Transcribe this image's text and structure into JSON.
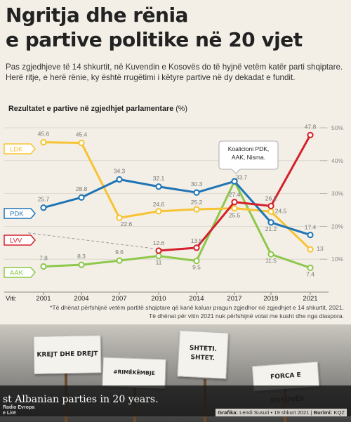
{
  "title_line1": "Ngritja dhe rënia",
  "title_line2": "e partive politike në 20 vjet",
  "subtitle": "Pas zgjedhjeve të 14 shkurtit, në Kuvendin e Kosovës do të hyjnë vetëm katër parti shqiptare. Herë ritje, e herë rënie, ky është rrugëtimi i këtyre partive në dy dekadat e fundit.",
  "chart_label_main": "Rezultatet e partive në zgjedhjet parlamentare",
  "chart_label_unit": "(%)",
  "footnote_line1": "*Të dhënat përfshijnë vetëm partitë shqiptare që kanë kaluar pragun zgjedhor në zgjedhjet e 14 shkurtit, 2021.",
  "footnote_line2": "Të dhënat për vitin 2021 nuk përfshijnë votat me kusht dhe nga diaspora.",
  "annotation_text": [
    "Koalicioni PDK,",
    "AAK, Nisma."
  ],
  "photo": {
    "signs": [
      "KREJT DHE DREJT",
      "#RIMËKËMBJE",
      "SHTETI. SHTET.",
      "FORCA E KOSOVËS"
    ],
    "caption": "st Albanian parties in 20 years.",
    "logo_line1": "Radio Evropa",
    "logo_line2": "e Lirë"
  },
  "credit": {
    "grafika_label": "Grafika:",
    "grafika_value": "Lendi Susuri",
    "date": "19 shkurt 2021",
    "burimi_label": "Burimi:",
    "burimi_value": "KQZ"
  },
  "chart_data": {
    "type": "line",
    "x_axis_prefix": "Viti:",
    "x": [
      "2001",
      "2004",
      "2007",
      "2010",
      "2014",
      "2017",
      "2019",
      "2021"
    ],
    "y_ticks": [
      "10%",
      "20%",
      "30%",
      "40%",
      "50%"
    ],
    "ylim": [
      0,
      52
    ],
    "grid": true,
    "series": [
      {
        "name": "LDK",
        "color": "#f7c332",
        "values": [
          45.6,
          45.4,
          22.6,
          24.6,
          25.2,
          25.5,
          24.5,
          13.0
        ],
        "labels": [
          "45.6",
          "45.4",
          "22.6",
          "24.6",
          "25.2",
          "25.5",
          "24.5",
          "13"
        ]
      },
      {
        "name": "PDK",
        "color": "#1f74b5",
        "values": [
          25.7,
          28.8,
          34.3,
          32.1,
          30.3,
          33.7,
          21.2,
          17.4
        ],
        "labels": [
          "25.7",
          "28.8",
          "34.3",
          "32.1",
          "30.3",
          "33.7",
          "21.2",
          "17.4"
        ]
      },
      {
        "name": "LVV",
        "color": "#d4202b",
        "values": [
          null,
          null,
          null,
          12.6,
          13.5,
          27.4,
          26.2,
          47.8
        ],
        "labels": [
          "",
          "",
          "",
          "12.6",
          "13.5",
          "27.4",
          "26.2",
          "47.8"
        ]
      },
      {
        "name": "AAK",
        "color": "#8dc74c",
        "values": [
          7.8,
          8.3,
          9.6,
          11.0,
          9.5,
          33.7,
          11.5,
          7.4
        ],
        "labels": [
          "7.8",
          "8.3",
          "9.6",
          "11",
          "9.5",
          "",
          "11.5",
          "7.4"
        ]
      }
    ],
    "lvv_dashed_from": {
      "x": "2001",
      "y": 18.0
    }
  }
}
